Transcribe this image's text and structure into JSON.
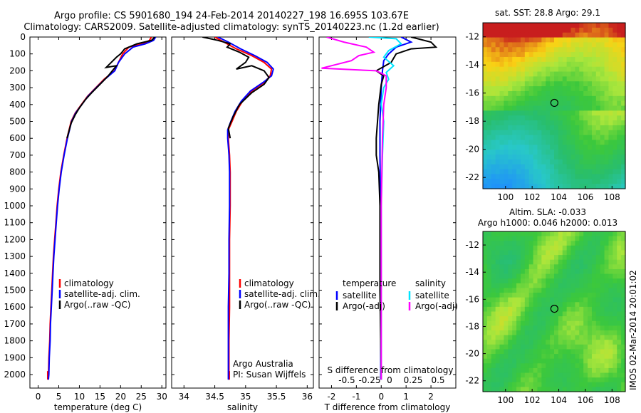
{
  "header": {
    "line1": "Argo profile: CS 5901680_194 24-Feb-2014 20140227_198 16.695S 103.67E",
    "line2": "Climatology: CARS2009. Satellite-adjusted climatology: synTS_20140223.nc (1.2d earlier)"
  },
  "chart_data": [
    {
      "type": "line",
      "id": "temperature",
      "xlabel": "temperature (deg C)",
      "ylabel": "",
      "xlim": [
        -2,
        31
      ],
      "ylim": [
        2080,
        0
      ],
      "xticks": [
        0,
        5,
        10,
        15,
        20,
        25,
        30
      ],
      "yticks": [
        0,
        100,
        200,
        300,
        400,
        500,
        600,
        700,
        800,
        900,
        1000,
        1100,
        1200,
        1300,
        1400,
        1500,
        1600,
        1700,
        1800,
        1900,
        2000
      ],
      "legend": [
        "climatology",
        "satellite-adj. clim.",
        "Argo(..raw -QC)"
      ],
      "series": [
        {
          "name": "climatology",
          "color": "#ff0000",
          "points": [
            [
              27.5,
              0
            ],
            [
              27,
              20
            ],
            [
              25.5,
              40
            ],
            [
              22,
              60
            ],
            [
              20.5,
              100
            ],
            [
              19.5,
              150
            ],
            [
              18.5,
              200
            ],
            [
              16,
              250
            ],
            [
              14,
              300
            ],
            [
              12,
              350
            ],
            [
              10.5,
              400
            ],
            [
              9,
              450
            ],
            [
              8,
              500
            ],
            [
              7,
              600
            ],
            [
              6.2,
              700
            ],
            [
              5.5,
              800
            ],
            [
              5,
              900
            ],
            [
              4.6,
              1000
            ],
            [
              4.3,
              1100
            ],
            [
              4.0,
              1200
            ],
            [
              3.7,
              1300
            ],
            [
              3.5,
              1400
            ],
            [
              3.3,
              1500
            ],
            [
              3.1,
              1600
            ],
            [
              2.9,
              1700
            ],
            [
              2.8,
              1800
            ],
            [
              2.6,
              1900
            ],
            [
              2.5,
              2000
            ],
            [
              2.4,
              2030
            ]
          ]
        },
        {
          "name": "satellite-adj. clim.",
          "color": "#0000ff",
          "points": [
            [
              28.5,
              0
            ],
            [
              28,
              20
            ],
            [
              26,
              40
            ],
            [
              23,
              60
            ],
            [
              21,
              100
            ],
            [
              19.5,
              150
            ],
            [
              18.6,
              200
            ],
            [
              16.2,
              250
            ],
            [
              14.1,
              300
            ],
            [
              12.1,
              350
            ],
            [
              10.6,
              400
            ],
            [
              9.1,
              450
            ],
            [
              8.1,
              500
            ],
            [
              7.1,
              600
            ],
            [
              6.3,
              700
            ],
            [
              5.6,
              800
            ],
            [
              5.1,
              900
            ],
            [
              4.7,
              1000
            ],
            [
              4.4,
              1100
            ],
            [
              4.1,
              1200
            ],
            [
              3.8,
              1300
            ],
            [
              3.6,
              1400
            ],
            [
              3.4,
              1500
            ],
            [
              3.2,
              1600
            ],
            [
              3.0,
              1700
            ],
            [
              2.9,
              1800
            ],
            [
              2.7,
              1900
            ],
            [
              2.6,
              2000
            ],
            [
              2.5,
              2030
            ]
          ]
        },
        {
          "name": "Argo(..raw -QC)",
          "color": "#000000",
          "points": [
            [
              28.3,
              0
            ],
            [
              27.5,
              20
            ],
            [
              24,
              40
            ],
            [
              21,
              70
            ],
            [
              20,
              100
            ],
            [
              19,
              120
            ],
            [
              16.5,
              180
            ],
            [
              19,
              170
            ],
            [
              17,
              230
            ],
            [
              15,
              280
            ],
            [
              13,
              330
            ],
            [
              11.5,
              370
            ],
            [
              10,
              420
            ],
            [
              9,
              460
            ],
            [
              8,
              510
            ],
            [
              7,
              600
            ]
          ]
        }
      ]
    },
    {
      "type": "line",
      "id": "salinity",
      "xlabel": "salinity",
      "ylabel": "",
      "xlim": [
        33.8,
        36.1
      ],
      "ylim": [
        2080,
        0
      ],
      "xticks": [
        34,
        34.5,
        35,
        35.5,
        36
      ],
      "legend": [
        "climatology",
        "satellite-adj. clim.",
        "Argo(..raw -QC)"
      ],
      "annotation": [
        "Argo Australia",
        "PI: Susan Wijffels"
      ],
      "series": [
        {
          "name": "climatology",
          "color": "#ff0000",
          "points": [
            [
              34.5,
              0
            ],
            [
              34.65,
              30
            ],
            [
              34.85,
              70
            ],
            [
              35.1,
              110
            ],
            [
              35.3,
              150
            ],
            [
              35.42,
              190
            ],
            [
              35.4,
              230
            ],
            [
              35.3,
              270
            ],
            [
              35.1,
              320
            ],
            [
              34.95,
              380
            ],
            [
              34.85,
              440
            ],
            [
              34.78,
              500
            ],
            [
              34.72,
              550
            ],
            [
              34.72,
              600
            ],
            [
              34.74,
              700
            ],
            [
              34.75,
              800
            ],
            [
              34.75,
              1000
            ],
            [
              34.74,
              1200
            ],
            [
              34.74,
              1400
            ],
            [
              34.74,
              1600
            ],
            [
              34.73,
              1800
            ],
            [
              34.73,
              2030
            ]
          ]
        },
        {
          "name": "satellite-adj. clim.",
          "color": "#0000ff",
          "points": [
            [
              34.55,
              0
            ],
            [
              34.72,
              30
            ],
            [
              34.92,
              70
            ],
            [
              35.15,
              110
            ],
            [
              35.35,
              150
            ],
            [
              35.45,
              190
            ],
            [
              35.42,
              230
            ],
            [
              35.28,
              270
            ],
            [
              35.08,
              320
            ],
            [
              34.93,
              380
            ],
            [
              34.83,
              440
            ],
            [
              34.76,
              500
            ],
            [
              34.71,
              550
            ],
            [
              34.71,
              600
            ],
            [
              34.73,
              700
            ],
            [
              34.74,
              800
            ],
            [
              34.74,
              1000
            ],
            [
              34.73,
              1200
            ],
            [
              34.73,
              1400
            ],
            [
              34.72,
              1600
            ],
            [
              34.72,
              1800
            ],
            [
              34.72,
              2030
            ]
          ]
        },
        {
          "name": "Argo(..raw -QC)",
          "color": "#000000",
          "points": [
            [
              34.3,
              0
            ],
            [
              34.55,
              20
            ],
            [
              34.75,
              40
            ],
            [
              34.7,
              60
            ],
            [
              34.9,
              90
            ],
            [
              35.05,
              120
            ],
            [
              35.0,
              150
            ],
            [
              34.85,
              190
            ],
            [
              35.1,
              170
            ],
            [
              35.3,
              200
            ],
            [
              35.38,
              240
            ],
            [
              35.3,
              280
            ],
            [
              35.1,
              330
            ],
            [
              34.9,
              400
            ],
            [
              34.8,
              470
            ],
            [
              34.72,
              540
            ],
            [
              34.75,
              600
            ]
          ]
        }
      ]
    },
    {
      "type": "line",
      "id": "difference",
      "xlabel": "T difference from climatology",
      "top_axis_label": "S difference from climatology",
      "xlim": [
        -2.5,
        3.0
      ],
      "ylim": [
        2080,
        0
      ],
      "xticks": [
        -2,
        -1,
        0,
        1,
        2
      ],
      "top_ticks": [
        "-0.5",
        "-0.25",
        "0",
        "0.25",
        "0.5"
      ],
      "legend": {
        "temperature_title": "temperature",
        "salinity_title": "salinity",
        "temp_items": [
          "satellite",
          "Argo(-adj)"
        ],
        "sal_items": [
          "satellite",
          "Argo(-adj)"
        ]
      },
      "series": [
        {
          "name": "T satellite",
          "color": "#0000ff",
          "points": [
            [
              0.8,
              0
            ],
            [
              1.2,
              30
            ],
            [
              0.6,
              60
            ],
            [
              0.3,
              100
            ],
            [
              0.1,
              140
            ],
            [
              0.05,
              200
            ],
            [
              0,
              300
            ],
            [
              -0.05,
              500
            ],
            [
              -0.05,
              700
            ],
            [
              -0.03,
              1000
            ],
            [
              -0.02,
              1500
            ],
            [
              -0.02,
              2030
            ]
          ]
        },
        {
          "name": "T Argo(-adj)",
          "color": "#000000",
          "points": [
            [
              1.2,
              0
            ],
            [
              2.0,
              30
            ],
            [
              2.2,
              60
            ],
            [
              1.2,
              70
            ],
            [
              0.6,
              100
            ],
            [
              0.4,
              150
            ],
            [
              -0.2,
              200
            ],
            [
              0.1,
              230
            ],
            [
              0,
              280
            ],
            [
              -0.1,
              400
            ],
            [
              -0.2,
              600
            ],
            [
              -0.2,
              700
            ],
            [
              -0.1,
              800
            ],
            [
              -0.05,
              1000
            ],
            [
              -0.05,
              1500
            ],
            [
              0,
              2030
            ]
          ]
        },
        {
          "name": "S satellite",
          "color": "#00e5ff",
          "points": [
            [
              -0.5,
              0
            ],
            [
              0.6,
              10
            ],
            [
              0.8,
              40
            ],
            [
              0.3,
              80
            ],
            [
              0.1,
              120
            ],
            [
              0.5,
              170
            ],
            [
              0.2,
              210
            ],
            [
              0.3,
              250
            ],
            [
              0.1,
              300
            ],
            [
              0.0,
              400
            ],
            [
              0.1,
              500
            ],
            [
              0.05,
              700
            ],
            [
              0.0,
              1000
            ],
            [
              0.0,
              2030
            ]
          ]
        },
        {
          "name": "S Argo(-adj)",
          "color": "#ff00ff",
          "points": [
            [
              -2.2,
              0
            ],
            [
              -1.5,
              30
            ],
            [
              -0.6,
              60
            ],
            [
              -0.3,
              90
            ],
            [
              -0.9,
              110
            ],
            [
              -1.2,
              140
            ],
            [
              -2.4,
              185
            ],
            [
              -0.2,
              200
            ],
            [
              0.2,
              230
            ],
            [
              0.2,
              300
            ],
            [
              0.1,
              400
            ],
            [
              0.05,
              600
            ],
            [
              0.0,
              1000
            ],
            [
              0.0,
              2030
            ]
          ]
        }
      ]
    },
    {
      "type": "heatmap",
      "id": "sst-map",
      "title": "sat. SST: 28.8 Argo: 29.1",
      "xlim": [
        98.3,
        109.0
      ],
      "ylim": [
        -22.8,
        -11.0
      ],
      "xticks": [
        100,
        102,
        104,
        106,
        108
      ],
      "yticks": [
        -12,
        -14,
        -16,
        -18,
        -20,
        -22
      ],
      "marker": [
        103.67,
        -16.695
      ]
    },
    {
      "type": "heatmap",
      "id": "sla-map",
      "title_line1": "Altim. SLA: -0.033",
      "title_line2": "Argo h1000: 0.046 h2000: 0.013",
      "xlim": [
        98.3,
        109.0
      ],
      "ylim": [
        -22.8,
        -11.0
      ],
      "xticks": [
        100,
        102,
        104,
        106,
        108
      ],
      "yticks": [
        -12,
        -14,
        -16,
        -18,
        -20,
        -22
      ],
      "marker": [
        103.67,
        -16.695
      ]
    }
  ],
  "footer": {
    "stamp": "IMOS 02-Mar-2014 20:01:02"
  }
}
